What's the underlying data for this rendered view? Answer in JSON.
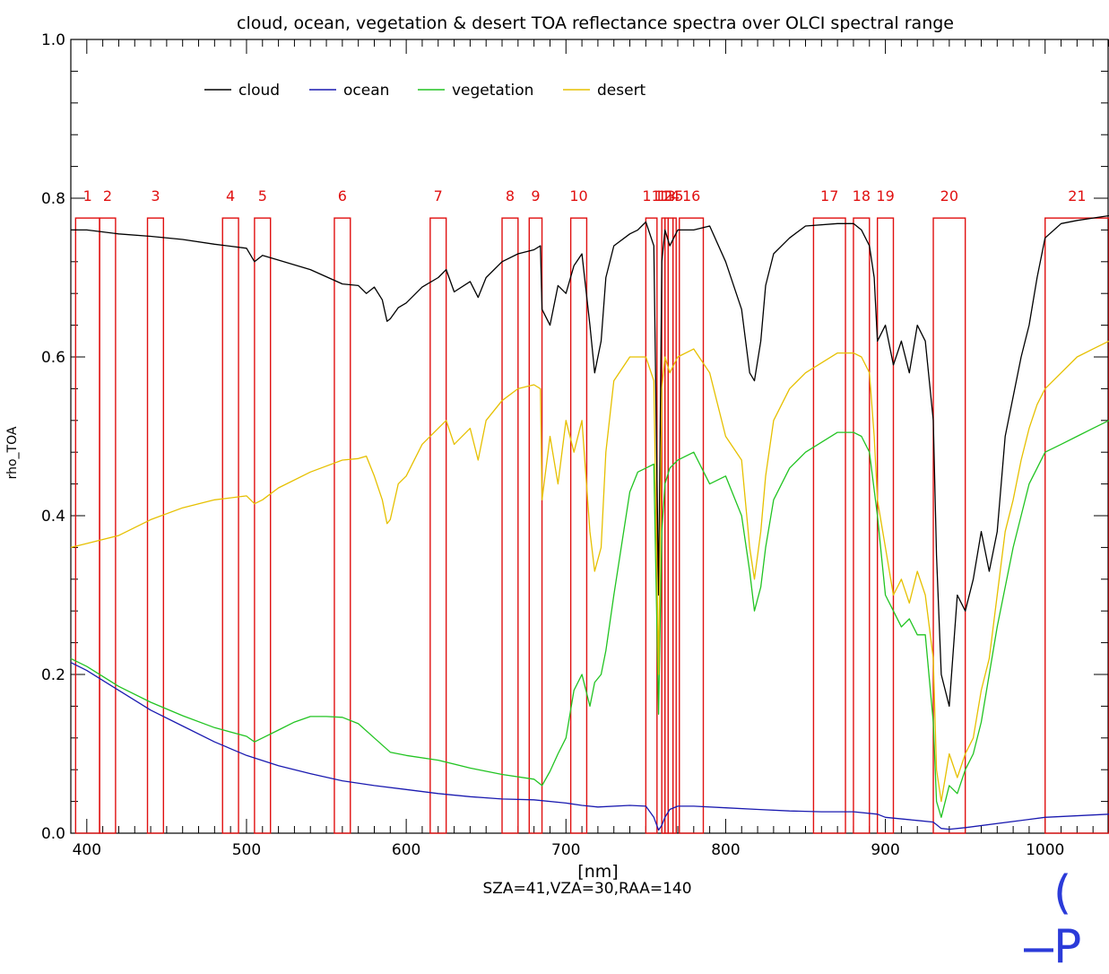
{
  "chart_data": {
    "type": "line",
    "title": "cloud, ocean, vegetation & desert TOA reflectance spectra over OLCI spectral range",
    "xlabel": "[nm]",
    "ylabel": "rho_TOA",
    "subtitle": "SZA=41,VZA=30,RAA=140",
    "xlim": [
      390,
      1040
    ],
    "ylim": [
      0.0,
      1.0
    ],
    "xticks": [
      400,
      500,
      600,
      700,
      800,
      900,
      1000
    ],
    "yticks": [
      0.0,
      0.2,
      0.4,
      0.6,
      0.8,
      1.0
    ],
    "ytick_labels": [
      "0.0",
      "0.2",
      "0.4",
      "0.6",
      "0.8",
      "1.0"
    ],
    "legend": {
      "placement": "top-left"
    },
    "series": [
      {
        "name": "cloud",
        "color": "#000000",
        "x": [
          390,
          400,
          420,
          440,
          460,
          480,
          500,
          505,
          510,
          520,
          540,
          560,
          570,
          575,
          580,
          585,
          588,
          590,
          595,
          600,
          610,
          620,
          625,
          630,
          640,
          645,
          650,
          660,
          670,
          680,
          684,
          685,
          690,
          695,
          700,
          705,
          710,
          715,
          718,
          722,
          725,
          730,
          740,
          745,
          750,
          755,
          758,
          760,
          762,
          765,
          770,
          780,
          790,
          800,
          810,
          815,
          818,
          822,
          825,
          830,
          840,
          850,
          870,
          880,
          885,
          890,
          893,
          895,
          900,
          905,
          910,
          915,
          920,
          925,
          930,
          932,
          935,
          940,
          945,
          950,
          955,
          960,
          965,
          970,
          975,
          980,
          985,
          990,
          995,
          1000,
          1010,
          1020,
          1030,
          1040
        ],
        "y": [
          0.76,
          0.76,
          0.755,
          0.752,
          0.748,
          0.742,
          0.737,
          0.72,
          0.728,
          0.722,
          0.71,
          0.692,
          0.69,
          0.68,
          0.688,
          0.672,
          0.645,
          0.648,
          0.662,
          0.668,
          0.688,
          0.7,
          0.71,
          0.682,
          0.695,
          0.675,
          0.7,
          0.72,
          0.73,
          0.735,
          0.74,
          0.66,
          0.64,
          0.69,
          0.68,
          0.715,
          0.73,
          0.64,
          0.58,
          0.62,
          0.7,
          0.74,
          0.755,
          0.76,
          0.77,
          0.74,
          0.3,
          0.72,
          0.76,
          0.74,
          0.76,
          0.76,
          0.765,
          0.72,
          0.66,
          0.58,
          0.57,
          0.62,
          0.69,
          0.73,
          0.75,
          0.765,
          0.768,
          0.768,
          0.76,
          0.74,
          0.7,
          0.62,
          0.64,
          0.59,
          0.62,
          0.58,
          0.64,
          0.62,
          0.52,
          0.35,
          0.2,
          0.16,
          0.3,
          0.28,
          0.32,
          0.38,
          0.33,
          0.38,
          0.5,
          0.55,
          0.6,
          0.64,
          0.7,
          0.75,
          0.768,
          0.772,
          0.775,
          0.778
        ]
      },
      {
        "name": "ocean",
        "color": "#1a1ab0",
        "x": [
          390,
          400,
          420,
          440,
          460,
          480,
          500,
          520,
          540,
          560,
          580,
          600,
          620,
          640,
          660,
          680,
          700,
          710,
          720,
          740,
          750,
          755,
          758,
          760,
          762,
          765,
          770,
          780,
          800,
          820,
          840,
          860,
          880,
          895,
          900,
          920,
          930,
          935,
          940,
          950,
          1000,
          1040
        ],
        "y": [
          0.215,
          0.205,
          0.18,
          0.155,
          0.135,
          0.115,
          0.098,
          0.085,
          0.075,
          0.066,
          0.06,
          0.055,
          0.05,
          0.046,
          0.043,
          0.042,
          0.038,
          0.035,
          0.033,
          0.035,
          0.034,
          0.02,
          0.004,
          0.01,
          0.02,
          0.03,
          0.034,
          0.034,
          0.032,
          0.03,
          0.028,
          0.027,
          0.027,
          0.024,
          0.02,
          0.016,
          0.014,
          0.006,
          0.005,
          0.007,
          0.02,
          0.024
        ]
      },
      {
        "name": "vegetation",
        "color": "#22c422",
        "x": [
          390,
          400,
          420,
          440,
          460,
          480,
          500,
          505,
          510,
          520,
          530,
          540,
          550,
          560,
          570,
          580,
          590,
          600,
          620,
          640,
          660,
          680,
          685,
          690,
          695,
          700,
          705,
          710,
          715,
          718,
          722,
          725,
          730,
          740,
          745,
          750,
          755,
          758,
          760,
          762,
          765,
          770,
          780,
          790,
          800,
          810,
          815,
          818,
          822,
          825,
          830,
          840,
          850,
          870,
          880,
          885,
          890,
          895,
          900,
          905,
          910,
          915,
          920,
          925,
          930,
          932,
          935,
          940,
          945,
          950,
          955,
          960,
          965,
          970,
          975,
          980,
          985,
          990,
          995,
          1000,
          1010,
          1020,
          1030,
          1040
        ],
        "y": [
          0.22,
          0.21,
          0.185,
          0.165,
          0.148,
          0.133,
          0.122,
          0.115,
          0.12,
          0.13,
          0.14,
          0.147,
          0.147,
          0.146,
          0.138,
          0.12,
          0.102,
          0.098,
          0.092,
          0.082,
          0.074,
          0.068,
          0.06,
          0.078,
          0.1,
          0.12,
          0.18,
          0.2,
          0.16,
          0.19,
          0.2,
          0.23,
          0.3,
          0.43,
          0.455,
          0.46,
          0.465,
          0.15,
          0.38,
          0.44,
          0.46,
          0.47,
          0.48,
          0.44,
          0.45,
          0.4,
          0.33,
          0.28,
          0.31,
          0.36,
          0.42,
          0.46,
          0.48,
          0.505,
          0.505,
          0.5,
          0.48,
          0.4,
          0.3,
          0.28,
          0.26,
          0.27,
          0.25,
          0.25,
          0.14,
          0.04,
          0.02,
          0.06,
          0.05,
          0.08,
          0.1,
          0.14,
          0.2,
          0.26,
          0.31,
          0.36,
          0.4,
          0.44,
          0.46,
          0.48,
          0.49,
          0.5,
          0.51,
          0.52
        ]
      },
      {
        "name": "desert",
        "color": "#e6c000",
        "x": [
          390,
          400,
          420,
          440,
          460,
          480,
          500,
          505,
          510,
          520,
          540,
          560,
          570,
          575,
          580,
          585,
          588,
          590,
          595,
          600,
          610,
          620,
          625,
          630,
          640,
          645,
          650,
          660,
          670,
          680,
          684,
          685,
          690,
          695,
          700,
          705,
          710,
          715,
          718,
          722,
          725,
          730,
          740,
          745,
          750,
          755,
          758,
          760,
          762,
          765,
          770,
          780,
          790,
          800,
          810,
          815,
          818,
          822,
          825,
          830,
          840,
          850,
          870,
          880,
          885,
          890,
          893,
          895,
          900,
          905,
          910,
          915,
          920,
          925,
          930,
          932,
          935,
          940,
          945,
          950,
          955,
          960,
          965,
          970,
          975,
          980,
          985,
          990,
          995,
          1000,
          1010,
          1020,
          1030,
          1040
        ],
        "y": [
          0.36,
          0.365,
          0.375,
          0.395,
          0.41,
          0.42,
          0.425,
          0.415,
          0.42,
          0.435,
          0.455,
          0.47,
          0.472,
          0.475,
          0.45,
          0.42,
          0.39,
          0.395,
          0.44,
          0.45,
          0.49,
          0.51,
          0.52,
          0.49,
          0.51,
          0.47,
          0.52,
          0.545,
          0.56,
          0.565,
          0.56,
          0.42,
          0.5,
          0.44,
          0.52,
          0.48,
          0.52,
          0.38,
          0.33,
          0.36,
          0.48,
          0.57,
          0.6,
          0.6,
          0.6,
          0.57,
          0.2,
          0.56,
          0.6,
          0.58,
          0.6,
          0.61,
          0.58,
          0.5,
          0.47,
          0.36,
          0.32,
          0.38,
          0.45,
          0.52,
          0.56,
          0.58,
          0.605,
          0.605,
          0.6,
          0.58,
          0.5,
          0.42,
          0.36,
          0.3,
          0.32,
          0.29,
          0.33,
          0.3,
          0.22,
          0.08,
          0.04,
          0.1,
          0.07,
          0.1,
          0.12,
          0.18,
          0.22,
          0.3,
          0.38,
          0.42,
          0.47,
          0.51,
          0.54,
          0.56,
          0.58,
          0.6,
          0.61,
          0.62
        ]
      }
    ],
    "bands": [
      {
        "label": "1",
        "x1": 393,
        "x2": 408
      },
      {
        "label": "2",
        "x1": 408,
        "x2": 418
      },
      {
        "label": "3",
        "x1": 438,
        "x2": 448
      },
      {
        "label": "4",
        "x1": 485,
        "x2": 495
      },
      {
        "label": "5",
        "x1": 505,
        "x2": 515
      },
      {
        "label": "6",
        "x1": 555,
        "x2": 565
      },
      {
        "label": "7",
        "x1": 615,
        "x2": 625
      },
      {
        "label": "8",
        "x1": 660,
        "x2": 670
      },
      {
        "label": "9",
        "x1": 677,
        "x2": 685
      },
      {
        "label": "10",
        "x1": 703,
        "x2": 713
      },
      {
        "label": "11",
        "x1": 750,
        "x2": 757
      },
      {
        "label": "12",
        "x1": 760,
        "x2": 762
      },
      {
        "label": "13",
        "x1": 762,
        "x2": 764
      },
      {
        "label": "14",
        "x1": 764,
        "x2": 767
      },
      {
        "label": "15",
        "x1": 767,
        "x2": 769
      },
      {
        "label": "16",
        "x1": 771,
        "x2": 786
      },
      {
        "label": "17",
        "x1": 855,
        "x2": 875
      },
      {
        "label": "18",
        "x1": 880,
        "x2": 890
      },
      {
        "label": "19",
        "x1": 895,
        "x2": 905
      },
      {
        "label": "20",
        "x1": 930,
        "x2": 950
      },
      {
        "label": "21",
        "x1": 1000,
        "x2": 1040
      }
    ],
    "band_label_text": [
      "1",
      "2",
      "3",
      "4",
      "5",
      "6",
      "7",
      "8",
      "9",
      "10",
      "11",
      "12",
      "13",
      "14",
      "15",
      "16",
      "17",
      "18",
      "19",
      "20",
      "21"
    ]
  },
  "decor": {
    "corner_mark": "( ̶P",
    "corner_color": "#2b3bd9"
  }
}
